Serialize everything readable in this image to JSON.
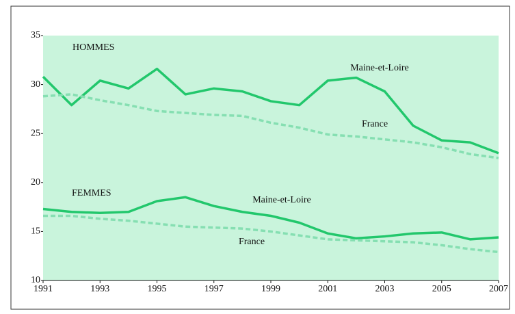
{
  "chart_data": {
    "type": "line",
    "x": [
      1991,
      1992,
      1993,
      1994,
      1995,
      1996,
      1997,
      1998,
      1999,
      2000,
      2001,
      2002,
      2003,
      2004,
      2005,
      2006,
      2007
    ],
    "xlim": [
      1991,
      2007
    ],
    "xticks": [
      1991,
      1993,
      1995,
      1997,
      1999,
      2001,
      2003,
      2005,
      2007
    ],
    "ylim": [
      10,
      35
    ],
    "yticks": [
      10,
      15,
      20,
      25,
      30,
      35
    ],
    "annotations": [
      "HOMMES",
      "FEMMES"
    ],
    "series": [
      {
        "name": "Maine-et-Loire",
        "color": "#22c76c",
        "dashed": false,
        "values": [
          30.8,
          27.9,
          30.4,
          29.6,
          31.6,
          29.0,
          29.6,
          29.3,
          28.3,
          27.9,
          30.4,
          30.7,
          29.3,
          25.8,
          24.3,
          24.1,
          23.0
        ]
      },
      {
        "name": "France",
        "color": "#86dfb2",
        "dashed": true,
        "values": [
          28.8,
          29.0,
          28.4,
          27.9,
          27.3,
          27.1,
          26.9,
          26.8,
          26.1,
          25.6,
          24.9,
          24.7,
          24.4,
          24.1,
          23.6,
          22.9,
          22.5
        ]
      },
      {
        "name": "Maine-et-Loire",
        "color": "#22c76c",
        "dashed": false,
        "values": [
          17.3,
          17.0,
          16.9,
          17.0,
          18.1,
          18.5,
          17.6,
          17.0,
          16.6,
          15.9,
          14.8,
          14.3,
          14.5,
          14.8,
          14.9,
          14.2,
          14.4
        ]
      },
      {
        "name": "France",
        "color": "#86dfb2",
        "dashed": true,
        "values": [
          16.6,
          16.6,
          16.3,
          16.1,
          15.8,
          15.5,
          15.4,
          15.3,
          15.0,
          14.6,
          14.2,
          14.1,
          14.0,
          13.9,
          13.6,
          13.2,
          12.9
        ]
      }
    ]
  }
}
